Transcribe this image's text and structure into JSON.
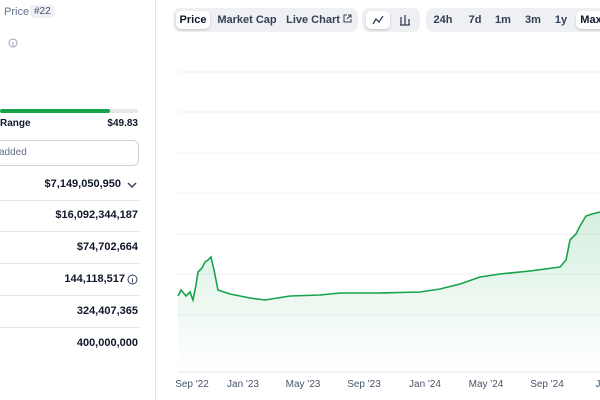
{
  "stats": {
    "price_label": "Price",
    "rank": "#22",
    "range_label": "Range",
    "range_high": "$49.83",
    "input_placeholder": "added",
    "rows": [
      "$7,149,050,950",
      "$16,092,344,187",
      "$74,702,664",
      "144,118,517",
      "324,407,365",
      "400,000,000"
    ]
  },
  "tabs": {
    "views": [
      "Price",
      "Market Cap",
      "Live Chart"
    ],
    "periods": [
      "24h",
      "7d",
      "1m",
      "3m",
      "1y",
      "Max"
    ]
  },
  "chart": {
    "x_labels": [
      "Sep '22",
      "Jan '23",
      "May '23",
      "Sep '23",
      "Jan '24",
      "May '24",
      "Sep '24",
      "J"
    ]
  }
}
